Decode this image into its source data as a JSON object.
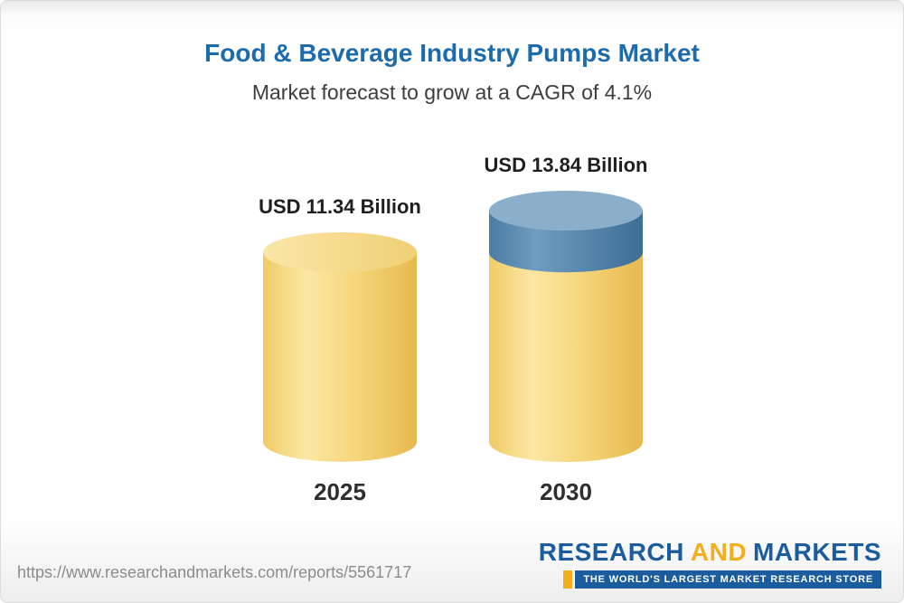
{
  "header": {
    "title": "Food & Beverage Industry Pumps Market",
    "subtitle": "Market forecast to grow at a CAGR of 4.1%"
  },
  "chart_data": {
    "type": "bar",
    "bar_style": "3d-cylinder",
    "title": "Food & Beverage Industry Pumps Market",
    "subtitle": "Market forecast to grow at a CAGR of 4.1%",
    "cagr_percent": 4.1,
    "unit": "USD Billion",
    "categories": [
      "2025",
      "2030"
    ],
    "series": [
      {
        "name": "Market size (USD Billion)",
        "values": [
          11.34,
          13.84
        ]
      }
    ],
    "value_labels": [
      "USD 11.34 Billion",
      "USD 13.84 Billion"
    ],
    "growth_segment_note": "Top blue segment of the 2030 cylinder represents growth above the 2025 value",
    "colors": {
      "bar_base_yellow": "#F5D67C",
      "growth_segment_blue": "#5C8DB4",
      "title_blue": "#1C6BAD"
    },
    "axes": {
      "x_ticks": [
        "2025",
        "2030"
      ],
      "y_axis_visible": false,
      "grid": false
    },
    "legend": "none"
  },
  "footer": {
    "url": "https://www.researchandmarkets.com/reports/5561717",
    "logo": {
      "part1": "RESEARCH",
      "part2": "AND",
      "part3": "MARKETS",
      "tagline": "THE WORLD'S LARGEST MARKET RESEARCH STORE",
      "brand_blue": "#1A5C9E",
      "brand_gold": "#F3AE1C"
    }
  }
}
